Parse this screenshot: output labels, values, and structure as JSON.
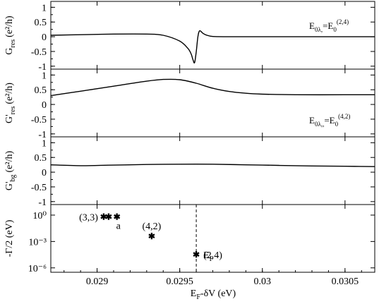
{
  "chart_data": [
    {
      "type": "line",
      "ylabel": "G_res (e²/h)",
      "ylabel_main": "G",
      "ylabel_sub": "res",
      "ylabel_units": "(e²/h)",
      "annotation": "E0λ,=E0(2,4)",
      "ylim": [
        -1.1,
        1.2
      ],
      "yticks": [
        "1",
        "0.5",
        "0",
        "-0.5",
        "-1"
      ],
      "yvalues": [
        1,
        0.5,
        0,
        -0.5,
        -1
      ],
      "series": [
        {
          "x": [
            0.02872,
            0.0289,
            0.0291,
            0.0293,
            0.0294,
            0.0295,
            0.02955,
            0.02957,
            0.02958,
            0.02959,
            0.0296,
            0.02961,
            0.02962,
            0.02964,
            0.02966,
            0.0297,
            0.0298,
            0.03,
            0.0303,
            0.03068
          ],
          "y": [
            0.05,
            0.07,
            0.09,
            0.09,
            0.05,
            -0.15,
            -0.4,
            -0.6,
            -0.78,
            -0.88,
            -0.5,
            0.0,
            0.2,
            0.12,
            0.06,
            0.01,
            0.0,
            0.0,
            0.0,
            0.0
          ]
        }
      ]
    },
    {
      "type": "line",
      "ylabel": "G'_res (e²/h)",
      "ylabel_main": "G'",
      "ylabel_sub": "res",
      "ylabel_units": "(e²/h)",
      "annotation": "E0λ,,=E0(4,2)",
      "ylim": [
        -1.1,
        1.2
      ],
      "yticks": [
        "1",
        "0.5",
        "0",
        "-0.5",
        "-1"
      ],
      "yvalues": [
        1,
        0.5,
        0,
        -0.5,
        -1
      ],
      "series": [
        {
          "x": [
            0.02872,
            0.0289,
            0.0291,
            0.0293,
            0.0294,
            0.0295,
            0.0296,
            0.0297,
            0.0298,
            0.0299,
            0.03,
            0.0302,
            0.0305,
            0.03068
          ],
          "y": [
            0.3,
            0.45,
            0.62,
            0.79,
            0.85,
            0.84,
            0.72,
            0.55,
            0.44,
            0.38,
            0.35,
            0.33,
            0.33,
            0.33
          ]
        }
      ]
    },
    {
      "type": "line",
      "ylabel": "G'_bg (e²/h)",
      "ylabel_main": "G'",
      "ylabel_sub": "bg",
      "ylabel_units": "(e²/h)",
      "ylim": [
        -1.1,
        1.2
      ],
      "yticks": [
        "1",
        "0.5",
        "0",
        "-0.5",
        "-1"
      ],
      "yvalues": [
        1,
        0.5,
        0,
        -0.5,
        -1
      ],
      "series": [
        {
          "x": [
            0.02872,
            0.0289,
            0.0291,
            0.0293,
            0.0295,
            0.0297,
            0.0299,
            0.0301,
            0.0303,
            0.0305,
            0.03068
          ],
          "y": [
            0.25,
            0.22,
            0.24,
            0.26,
            0.27,
            0.27,
            0.25,
            0.23,
            0.21,
            0.2,
            0.19
          ]
        }
      ]
    },
    {
      "type": "scatter",
      "ylabel": "-Γ/2 (eV)",
      "xlabel": "E_F-δV (eV)",
      "xlabel_main": "E",
      "xlabel_sub": "F",
      "xlabel_rest": "-δV (eV)",
      "log_y": true,
      "yticks": [
        "10⁻⁶",
        "10⁻³",
        "10⁰"
      ],
      "ytick_exponents": [
        -6,
        -3,
        0
      ],
      "ylim_exponent": [
        1.2,
        -6.5
      ],
      "xlim": [
        0.02872,
        0.03068
      ],
      "xticks": [
        "0.029",
        "0.0295",
        "0.03",
        "0.0305"
      ],
      "xtick_values": [
        0.029,
        0.0295,
        0.03,
        0.0305
      ],
      "points": [
        {
          "label": "(3,3)",
          "x": 0.02904,
          "y_exponent": -0.2
        },
        {
          "label": "",
          "x": 0.02907,
          "y_exponent": -0.2
        },
        {
          "label": "a",
          "x": 0.02912,
          "y_exponent": -0.2
        },
        {
          "label": "(4,2)",
          "x": 0.02933,
          "y_exponent": -2.4
        },
        {
          "label": "(2,4)",
          "x": 0.0296,
          "y_exponent": -4.5
        }
      ],
      "vline": {
        "x": 0.0296,
        "label": "E_F",
        "label_main": "E",
        "label_sub": "F"
      }
    }
  ]
}
